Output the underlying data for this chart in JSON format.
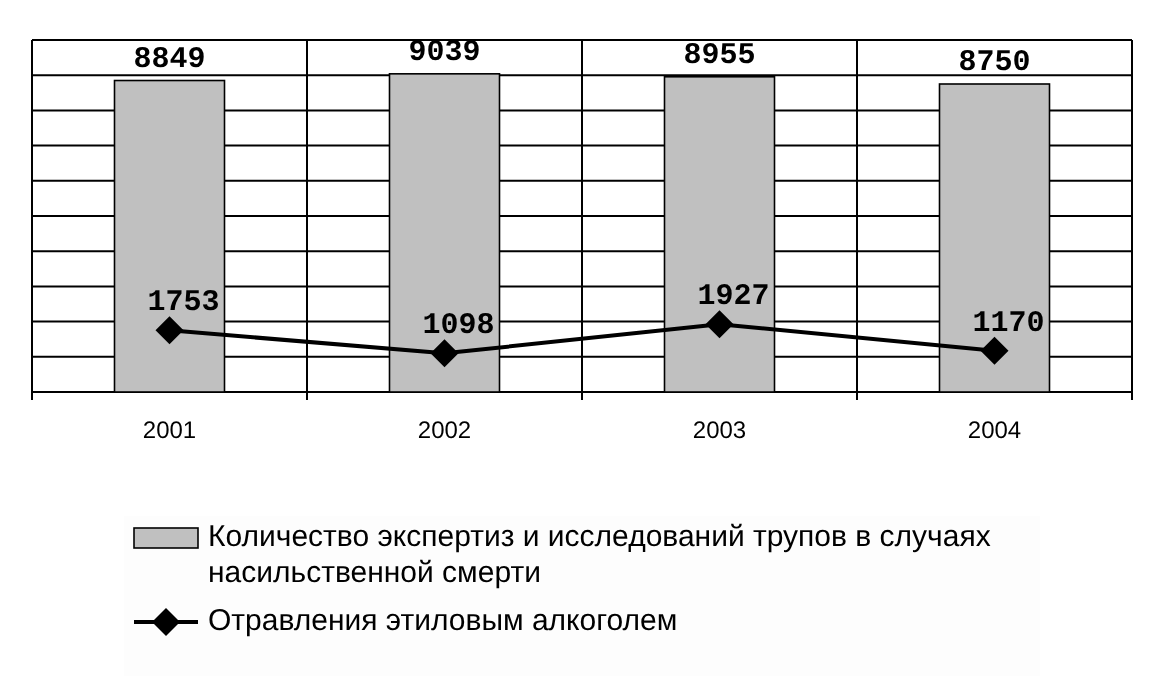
{
  "chart_data": {
    "type": "bar",
    "categories": [
      "2001",
      "2002",
      "2003",
      "2004"
    ],
    "series": [
      {
        "name": "Количество экспертиз и исследований трупов в случаях насильственной смерти",
        "color": "#c0c0c0",
        "values": [
          8849,
          9039,
          8955,
          8750
        ]
      },
      {
        "name": "Отравления этиловым алкоголем",
        "type": "line",
        "color": "#000000",
        "marker": "diamond",
        "values": [
          1753,
          1098,
          1927,
          1170
        ]
      }
    ],
    "ylim": [
      0,
      10000
    ],
    "yticks": [
      {
        "value": 0,
        "label": null
      },
      {
        "value": 1000,
        "label": null
      },
      {
        "value": 2000,
        "label": null
      },
      {
        "value": 3000,
        "label": null
      },
      {
        "value": 4000,
        "label": null
      },
      {
        "value": 5000,
        "label": null
      },
      {
        "value": 6000,
        "label": null
      },
      {
        "value": 7000,
        "label": null
      },
      {
        "value": 8000,
        "label": null
      },
      {
        "value": 9000,
        "label": null
      },
      {
        "value": 10000,
        "label": null
      }
    ],
    "tick_labels": "x",
    "grid": true,
    "data_labels": true,
    "legend": "bottom"
  }
}
